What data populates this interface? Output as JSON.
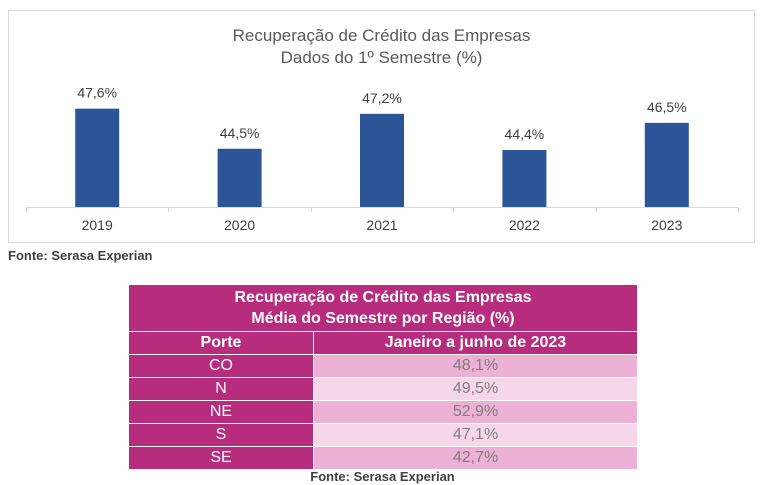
{
  "chart_data": {
    "type": "bar",
    "title": "Recuperação de Crédito das Empresas",
    "subtitle": "Dados do 1º Semestre (%)",
    "categories": [
      "2019",
      "2020",
      "2021",
      "2022",
      "2023"
    ],
    "values": [
      47.6,
      44.5,
      47.2,
      44.4,
      46.5
    ],
    "data_labels": [
      "47,6%",
      "44,5%",
      "47,2%",
      "44,4%",
      "46,5%"
    ],
    "bar_color": "#2b5597",
    "ylim": [
      40,
      48.5
    ],
    "grid": false
  },
  "source_1": "Fonte: Serasa Experian",
  "table": {
    "title_line1": "Recuperação de Crédito das Empresas",
    "title_line2": "Média do Semestre por Região (%)",
    "col_headers": [
      "Porte",
      "Janeiro a junho de 2023"
    ],
    "rows": [
      {
        "porte": "CO",
        "value": "48,1%"
      },
      {
        "porte": "N",
        "value": "49,5%"
      },
      {
        "porte": "NE",
        "value": "52,9%"
      },
      {
        "porte": "S",
        "value": "47,1%"
      },
      {
        "porte": "SE",
        "value": "42,7%"
      }
    ],
    "header_color": "#b72c7d"
  },
  "source_2": "Fonte: Serasa Experian"
}
